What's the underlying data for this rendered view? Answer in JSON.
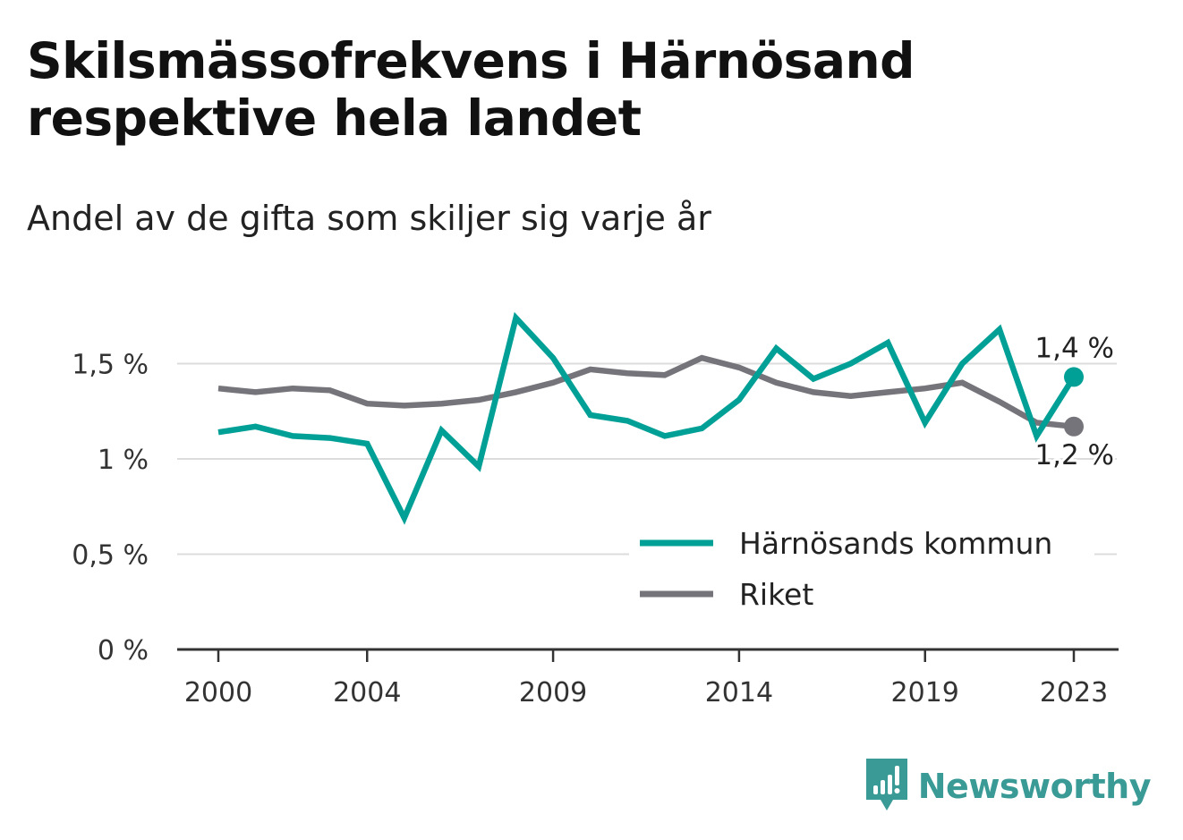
{
  "title": "Skilsmässofrekvens i Härnösand respektive hela landet",
  "subtitle": "Andel av de gifta som skiljer sig varje år",
  "brand": {
    "name": "Newsworthy",
    "icon": "newsworthy-logo-icon",
    "color": "#3a9a96"
  },
  "chart_data": {
    "type": "line",
    "x": [
      2000,
      2001,
      2002,
      2003,
      2004,
      2005,
      2006,
      2007,
      2008,
      2009,
      2010,
      2011,
      2012,
      2013,
      2014,
      2015,
      2016,
      2017,
      2018,
      2019,
      2020,
      2021,
      2022,
      2023
    ],
    "x_tick_labels": [
      "2000",
      "2004",
      "2009",
      "2014",
      "2019",
      "2023"
    ],
    "x_tick_values": [
      2000,
      2004,
      2009,
      2014,
      2019,
      2023
    ],
    "y_tick_labels": [
      "0 %",
      "0,5 %",
      "1 %",
      "1,5 %"
    ],
    "y_tick_values": [
      0,
      0.5,
      1,
      1.5
    ],
    "ylim": [
      0,
      1.75
    ],
    "grid": true,
    "legend_placement": "bottom-right",
    "series": [
      {
        "name": "Härnösands kommun",
        "color": "#00a096",
        "end_label": "1,4 %",
        "values": [
          1.14,
          1.17,
          1.12,
          1.11,
          1.08,
          0.69,
          1.15,
          0.96,
          1.74,
          1.53,
          1.23,
          1.2,
          1.12,
          1.16,
          1.31,
          1.58,
          1.42,
          1.5,
          1.61,
          1.19,
          1.5,
          1.68,
          1.12,
          1.43
        ]
      },
      {
        "name": "Riket",
        "color": "#75747a",
        "end_label": "1,2 %",
        "values": [
          1.37,
          1.35,
          1.37,
          1.36,
          1.29,
          1.28,
          1.29,
          1.31,
          1.35,
          1.4,
          1.47,
          1.45,
          1.44,
          1.53,
          1.48,
          1.4,
          1.35,
          1.33,
          1.35,
          1.37,
          1.4,
          1.3,
          1.19,
          1.17
        ]
      }
    ]
  }
}
